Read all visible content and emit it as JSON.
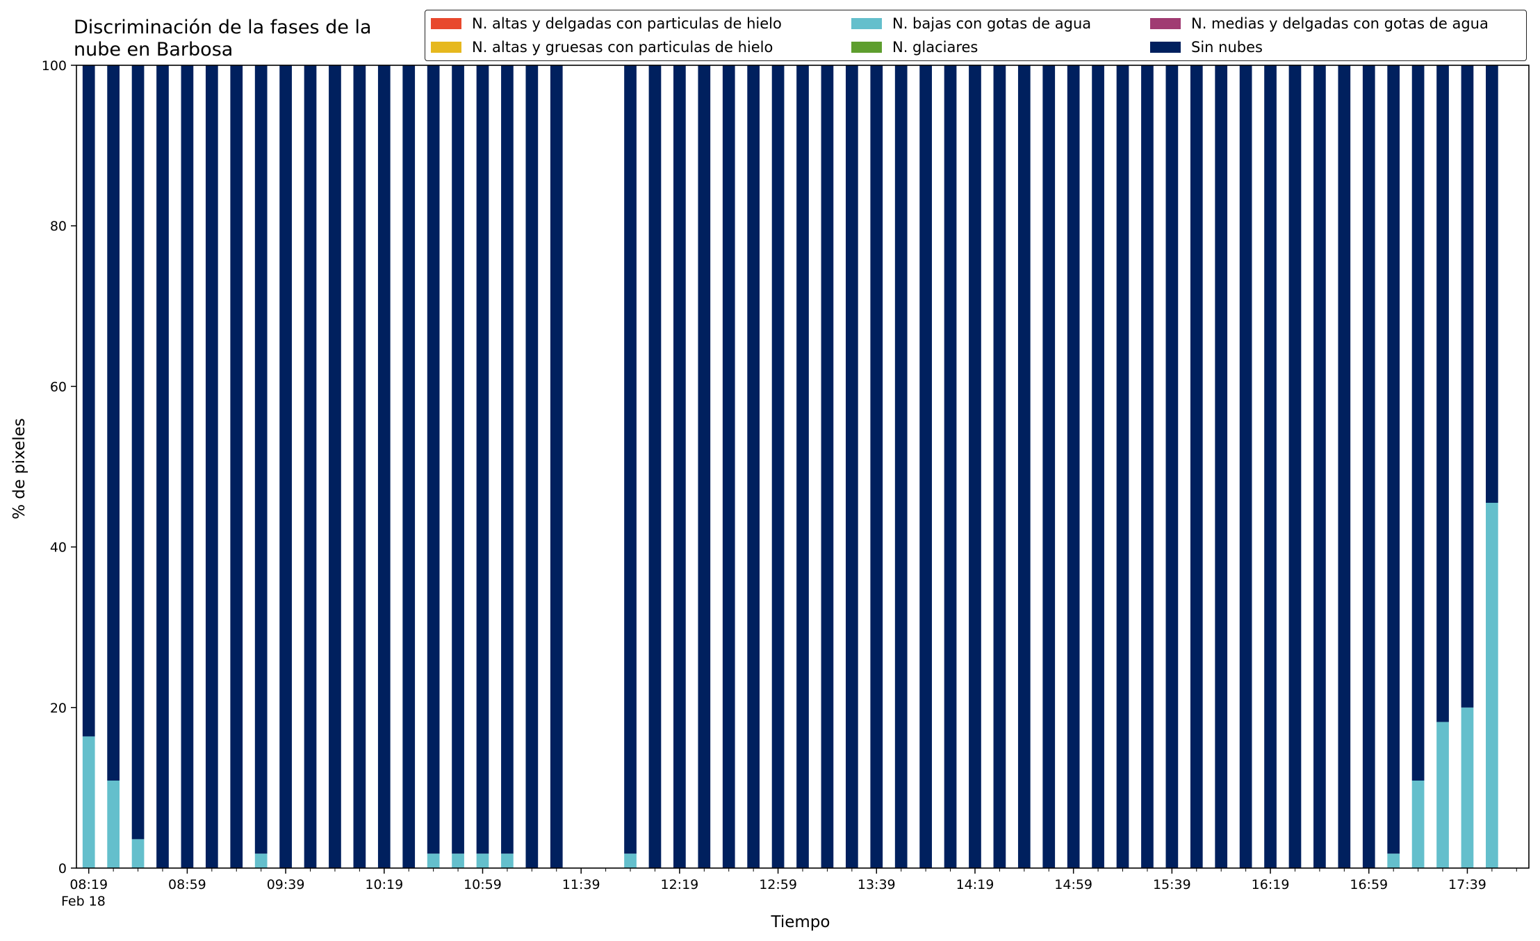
{
  "chart_data": {
    "type": "bar",
    "stacked": true,
    "title": "Discriminación de la fases de la nube en Barbosa",
    "title_lines": [
      "Discriminación de la fases de la",
      "nube en Barbosa"
    ],
    "xlabel": "Tiempo",
    "ylabel": "% de pixeles",
    "date_label": "Feb 18",
    "ylim": [
      0,
      100
    ],
    "yticks": [
      0,
      20,
      40,
      60,
      80,
      100
    ],
    "xlim_slots": [
      -0.5,
      58.5
    ],
    "xtick_labels": [
      "08:19",
      "08:59",
      "09:39",
      "10:19",
      "10:59",
      "11:39",
      "12:19",
      "12:59",
      "13:39",
      "14:19",
      "14:59",
      "15:39",
      "16:19",
      "16:59",
      "17:39"
    ],
    "xtick_every": 4,
    "categories": [
      "08:19",
      "08:29",
      "08:39",
      "08:49",
      "08:59",
      "09:09",
      "09:19",
      "09:29",
      "09:39",
      "09:49",
      "09:59",
      "10:09",
      "10:19",
      "10:29",
      "10:39",
      "10:49",
      "10:59",
      "11:09",
      "11:19",
      "11:29",
      "11:39",
      "11:49",
      "11:59",
      "12:09",
      "12:19",
      "12:29",
      "12:39",
      "12:49",
      "12:59",
      "13:09",
      "13:19",
      "13:29",
      "13:39",
      "13:49",
      "13:59",
      "14:09",
      "14:19",
      "14:29",
      "14:39",
      "14:49",
      "14:59",
      "15:09",
      "15:19",
      "15:29",
      "15:39",
      "15:49",
      "15:59",
      "16:09",
      "16:19",
      "16:29",
      "16:39",
      "16:49",
      "16:59",
      "17:09",
      "17:19",
      "17:29",
      "17:39",
      "17:49"
    ],
    "legend_position": "top-right",
    "series": [
      {
        "name": "N. altas y delgadas con particulas de hielo",
        "color": "#e8482d",
        "values": [
          0,
          0,
          0,
          0,
          0,
          0,
          0,
          0,
          0,
          0,
          0,
          0,
          0,
          0,
          0,
          0,
          0,
          0,
          0,
          0,
          null,
          null,
          0,
          0,
          0,
          0,
          0,
          0,
          0,
          0,
          0,
          0,
          0,
          0,
          0,
          0,
          0,
          0,
          0,
          0,
          0,
          0,
          0,
          0,
          0,
          0,
          0,
          0,
          0,
          0,
          0,
          0,
          0,
          0,
          0,
          0,
          0,
          0
        ]
      },
      {
        "name": "N. altas y gruesas con particulas de hielo",
        "color": "#e6b81e",
        "values": [
          0,
          0,
          0,
          0,
          0,
          0,
          0,
          0,
          0,
          0,
          0,
          0,
          0,
          0,
          0,
          0,
          0,
          0,
          0,
          0,
          null,
          null,
          0,
          0,
          0,
          0,
          0,
          0,
          0,
          0,
          0,
          0,
          0,
          0,
          0,
          0,
          0,
          0,
          0,
          0,
          0,
          0,
          0,
          0,
          0,
          0,
          0,
          0,
          0,
          0,
          0,
          0,
          0,
          0,
          0,
          0,
          0,
          0
        ]
      },
      {
        "name": "N. bajas con gotas de agua",
        "color": "#64bfcc",
        "values": [
          16.4,
          10.9,
          3.6,
          0,
          0,
          0,
          0,
          1.8,
          0,
          0,
          0,
          0,
          0,
          0,
          1.8,
          1.8,
          1.8,
          1.8,
          0,
          0,
          null,
          null,
          1.8,
          0,
          0,
          0,
          0,
          0,
          0,
          0,
          0,
          0,
          0,
          0,
          0,
          0,
          0,
          0,
          0,
          0,
          0,
          0,
          0,
          0,
          0,
          0,
          0,
          0,
          0,
          0,
          0,
          0,
          0,
          1.8,
          10.9,
          18.2,
          20.0,
          45.5
        ]
      },
      {
        "name": "N. glaciares",
        "color": "#5e9e2e",
        "values": [
          0,
          0,
          0,
          0,
          0,
          0,
          0,
          0,
          0,
          0,
          0,
          0,
          0,
          0,
          0,
          0,
          0,
          0,
          0,
          0,
          null,
          null,
          0,
          0,
          0,
          0,
          0,
          0,
          0,
          0,
          0,
          0,
          0,
          0,
          0,
          0,
          0,
          0,
          0,
          0,
          0,
          0,
          0,
          0,
          0,
          0,
          0,
          0,
          0,
          0,
          0,
          0,
          0,
          0,
          0,
          0,
          0,
          0
        ]
      },
      {
        "name": "N. medias y delgadas con gotas de agua",
        "color": "#a03b72",
        "values": [
          0,
          0,
          0,
          0,
          0,
          0,
          0,
          0,
          0,
          0,
          0,
          0,
          0,
          0,
          0,
          0,
          0,
          0,
          0,
          0,
          null,
          null,
          0,
          0,
          0,
          0,
          0,
          0,
          0,
          0,
          0,
          0,
          0,
          0,
          0,
          0,
          0,
          0,
          0,
          0,
          0,
          0,
          0,
          0,
          0,
          0,
          0,
          0,
          0,
          0,
          0,
          0,
          0,
          0,
          0,
          0,
          0,
          0
        ]
      },
      {
        "name": "Sin nubes",
        "color": "#00205e",
        "values": [
          83.6,
          89.1,
          96.4,
          100,
          100,
          100,
          100,
          98.2,
          100,
          100,
          100,
          100,
          100,
          100,
          98.2,
          98.2,
          98.2,
          98.2,
          100,
          100,
          null,
          null,
          98.2,
          100,
          100,
          100,
          100,
          100,
          100,
          100,
          100,
          100,
          100,
          100,
          100,
          100,
          100,
          100,
          100,
          100,
          100,
          100,
          100,
          100,
          100,
          100,
          100,
          100,
          100,
          100,
          100,
          100,
          100,
          98.2,
          89.1,
          81.8,
          80.0,
          54.5
        ]
      }
    ],
    "legend_order": [
      [
        "N. altas y delgadas con particulas de hielo",
        "N. bajas con gotas de agua",
        "N. medias y delgadas con gotas de agua"
      ],
      [
        "N. altas y gruesas con particulas de hielo",
        "N. glaciares",
        "Sin nubes"
      ]
    ]
  }
}
